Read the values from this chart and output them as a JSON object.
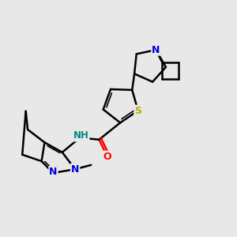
{
  "background_color": "#e8e8e8",
  "atom_colors": {
    "N": "#0000dd",
    "O": "#ff0000",
    "S": "#bbaa00",
    "C": "#000000",
    "H": "#008888"
  },
  "bond_lw": 1.8,
  "inner_lw": 1.2,
  "figsize": [
    3.0,
    3.0
  ],
  "dpi": 100
}
